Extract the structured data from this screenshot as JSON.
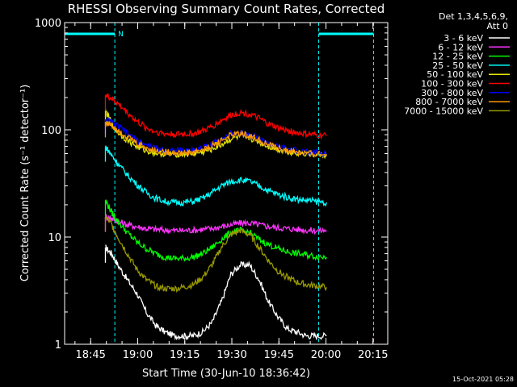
{
  "chart_data": {
    "type": "line",
    "title": "RHESSI Observing Summary Count Rates, Corrected",
    "xlabel": "Start Time (30-Jun-10 18:36:42)",
    "ylabel": "Corrected Count Rate (s⁻¹ detector⁻¹)",
    "yscale": "log",
    "ylim": [
      1,
      1000
    ],
    "xlim_minutes": [
      0,
      103
    ],
    "x_unit": "minutes since 18:36:42",
    "x_tick_labels": [
      "18:45",
      "19:00",
      "19:15",
      "19:30",
      "19:45",
      "20:00",
      "20:15"
    ],
    "x_tick_minutes": [
      8.3,
      23.3,
      38.3,
      53.3,
      68.3,
      83.3,
      98.3
    ],
    "y_tick_labels": [
      "1",
      "10",
      "100",
      "1000"
    ],
    "y_tick_values": [
      1,
      10,
      100,
      1000
    ],
    "legend_header": [
      "Det 1,3,4,5,6,9,",
      "Att 0"
    ],
    "legend_position": "right",
    "timestamp": "15-Oct-2021 05:28",
    "night_marker_label": "N",
    "night_intervals_minutes": [
      [
        0,
        16
      ],
      [
        81,
        98.5
      ]
    ],
    "x": [
      13,
      15,
      17,
      20,
      23,
      26,
      29,
      32,
      35,
      38,
      41,
      44,
      47,
      50,
      53,
      56,
      59,
      62,
      65,
      68,
      71,
      74,
      77,
      80,
      83.5
    ],
    "series": [
      {
        "name": "3 - 6 keV",
        "color": "#ffffff",
        "values": [
          8,
          7,
          5.5,
          4,
          3,
          2,
          1.5,
          1.3,
          1.2,
          1.2,
          1.2,
          1.3,
          1.6,
          2.5,
          4.5,
          5.5,
          5.5,
          4,
          2.5,
          1.8,
          1.4,
          1.3,
          1.2,
          1.2,
          1.2
        ]
      },
      {
        "name": "6 - 12 keV",
        "color": "#ff33ff",
        "values": [
          15.5,
          15,
          14,
          13,
          12.5,
          12,
          11.8,
          11.6,
          11.5,
          11.5,
          11.6,
          11.8,
          12,
          12.5,
          13,
          13.5,
          13.5,
          13,
          12.5,
          12.2,
          12,
          11.8,
          11.6,
          11.5,
          11.5
        ]
      },
      {
        "name": "12 - 25 keV",
        "color": "#00ff00",
        "values": [
          22,
          17,
          14,
          11,
          9,
          7.8,
          7,
          6.5,
          6.3,
          6.3,
          6.5,
          7,
          8,
          9.5,
          11,
          11.5,
          11,
          9.5,
          8.5,
          7.8,
          7.3,
          7,
          6.8,
          6.6,
          6.5
        ]
      },
      {
        "name": "25 - 50 keV",
        "color": "#00ffff",
        "values": [
          70,
          58,
          48,
          38,
          31,
          26,
          23,
          21.5,
          21,
          21,
          21.5,
          23,
          26,
          30,
          33,
          34,
          33,
          30,
          27,
          25,
          23.5,
          22.5,
          22,
          21.5,
          21
        ]
      },
      {
        "name": "50 - 100 keV",
        "color": "#e6e600",
        "values": [
          150,
          115,
          95,
          80,
          70,
          64,
          61,
          60,
          59.5,
          59.5,
          60,
          62,
          66,
          73,
          82,
          87,
          84,
          77,
          70,
          66,
          63,
          61,
          60,
          59,
          58
        ]
      },
      {
        "name": "100 - 300 keV",
        "color": "#ff0000",
        "values": [
          210,
          195,
          175,
          145,
          120,
          104,
          96,
          92,
          91,
          91,
          92,
          97,
          107,
          122,
          137,
          145,
          140,
          127,
          113,
          104,
          98,
          94,
          91,
          89,
          88
        ]
      },
      {
        "name": "300 - 800 keV",
        "color": "#0000ff",
        "values": [
          125,
          118,
          108,
          92,
          80,
          72,
          67,
          65,
          64,
          64,
          65,
          68,
          74,
          83,
          91,
          94,
          90,
          82,
          74,
          69,
          66,
          64,
          62,
          61,
          60
        ]
      },
      {
        "name": "800 - 7000 keV",
        "color": "#ff9900",
        "values": [
          118,
          110,
          100,
          86,
          75,
          68,
          64,
          62,
          61,
          61,
          62,
          65,
          71,
          80,
          89,
          92,
          88,
          80,
          72,
          67,
          64,
          62,
          60,
          59,
          58
        ]
      },
      {
        "name": "7000 - 15000 keV",
        "color": "#999900",
        "values": [
          15.5,
          13,
          10,
          7,
          5,
          4,
          3.5,
          3.3,
          3.3,
          3.4,
          3.6,
          4.2,
          5.5,
          8,
          10.5,
          11.5,
          10.5,
          8,
          6,
          4.8,
          4.2,
          3.8,
          3.6,
          3.5,
          3.4
        ]
      }
    ]
  }
}
